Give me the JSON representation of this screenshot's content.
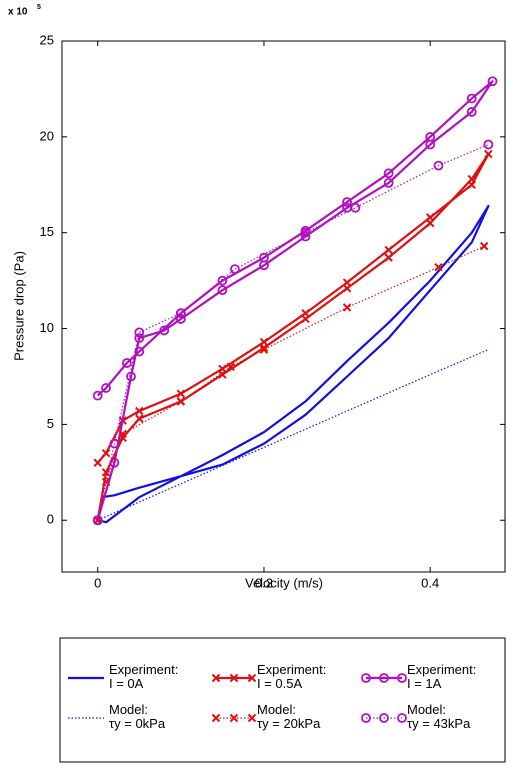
{
  "chart_data": {
    "type": "line",
    "y_offset_label": "x 10",
    "y_offset_exponent": "5",
    "xlabel": "Velocity (m/s)",
    "ylabel": "Pressure drop (Pa)",
    "xlim": [
      -0.043,
      0.49
    ],
    "ylim": [
      -2.7,
      25
    ],
    "xticks": [
      0,
      0.2,
      0.4
    ],
    "yticks": [
      0,
      5,
      10,
      15,
      20,
      25
    ],
    "grid": false,
    "legend": "below",
    "series": [
      {
        "name": "Experiment:\nI = 0A",
        "color": "#1010e0",
        "linestyle": "solid",
        "marker": null,
        "x": [
          0,
          0.005,
          0.02,
          0.05,
          0.1,
          0.15,
          0.2,
          0.25,
          0.3,
          0.35,
          0.4,
          0.45,
          0.47,
          0.45,
          0.4,
          0.35,
          0.3,
          0.25,
          0.2,
          0.15,
          0.1,
          0.05,
          0.01,
          0
        ],
        "values": [
          0,
          1.2,
          1.3,
          1.7,
          2.3,
          2.9,
          4.0,
          5.5,
          7.5,
          9.5,
          12,
          14.5,
          16.4,
          15,
          12.5,
          10.3,
          8.3,
          6.2,
          4.6,
          3.4,
          2.3,
          1.2,
          -0.1,
          0
        ]
      },
      {
        "name": "Experiment:\nI = 0.5A",
        "color": "#e01010",
        "linestyle": "solid",
        "marker": "x",
        "x": [
          0,
          0.01,
          0.03,
          0.05,
          0.1,
          0.15,
          0.2,
          0.25,
          0.3,
          0.35,
          0.4,
          0.45,
          0.47,
          0.45,
          0.4,
          0.35,
          0.3,
          0.25,
          0.2,
          0.15,
          0.1,
          0.05,
          0.03,
          0.01,
          0
        ],
        "values": [
          0,
          2.5,
          4.3,
          5.3,
          6.2,
          7.6,
          9,
          10.5,
          12.1,
          13.7,
          15.5,
          17.8,
          19.1,
          17.5,
          15.8,
          14.1,
          12.4,
          10.8,
          9.3,
          7.9,
          6.6,
          5.7,
          5.2,
          3.5,
          3.0
        ]
      },
      {
        "name": "Experiment:\nI = 1A",
        "color": "#b010c0",
        "linestyle": "solid",
        "marker": "o",
        "x": [
          0,
          0.02,
          0.04,
          0.05,
          0.08,
          0.1,
          0.15,
          0.2,
          0.25,
          0.3,
          0.35,
          0.4,
          0.45,
          0.475,
          0.45,
          0.4,
          0.35,
          0.3,
          0.25,
          0.2,
          0.15,
          0.1,
          0.05,
          0.035,
          0.01,
          0
        ],
        "values": [
          0,
          3,
          7.5,
          9.5,
          9.9,
          10.5,
          12,
          13.3,
          14.8,
          16.3,
          17.6,
          19.6,
          21.3,
          22.9,
          22,
          20,
          18.1,
          16.6,
          15.1,
          13.7,
          12.5,
          10.8,
          8.8,
          8.2,
          6.9,
          6.5
        ]
      },
      {
        "name": "Model:\nτy = 0kPa",
        "color": "#1010e0",
        "linestyle": "dotted",
        "marker": null,
        "x": [
          0,
          0.1,
          0.2,
          0.3,
          0.4,
          0.47
        ],
        "values": [
          0,
          1.9,
          3.8,
          5.7,
          7.6,
          8.9
        ]
      },
      {
        "name": "Model:\nτy = 20kPa",
        "color": "#e01010",
        "linestyle": "dotted",
        "marker": "x",
        "x": [
          0,
          0.01,
          0.03,
          0.1,
          0.16,
          0.2,
          0.3,
          0.41,
          0.465
        ],
        "values": [
          0,
          2,
          4.5,
          6.2,
          8,
          8.9,
          11.1,
          13.2,
          14.3
        ]
      },
      {
        "name": "Model:\nτy = 43kPa",
        "color": "#b010c0",
        "linestyle": "dotted",
        "marker": "o",
        "x": [
          0,
          0.02,
          0.05,
          0.1,
          0.165,
          0.25,
          0.31,
          0.41,
          0.47
        ],
        "values": [
          0,
          4,
          9.8,
          10.8,
          13.1,
          15,
          16.3,
          18.5,
          19.6
        ]
      }
    ]
  }
}
